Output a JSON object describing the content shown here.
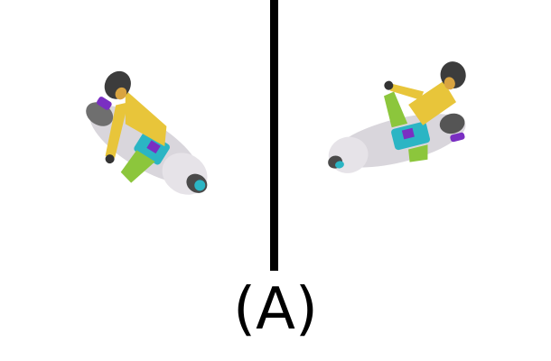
{
  "caption": "(A)",
  "panels": [
    {
      "label": "",
      "view": "motorcycle-rider-leaning-left",
      "icon": "motorcycle-rider-figure"
    },
    {
      "label": "",
      "view": "motorcycle-rider-leaning-right",
      "icon": "motorcycle-rider-figure"
    }
  ],
  "colors": {
    "rider_body": "#e8c53a",
    "rider_head": "#3c3c3c",
    "bike_body": "#d9d6dc",
    "accent_teal": "#2bb5c4",
    "accent_green": "#8cc63c",
    "accent_purple": "#7a2fc2",
    "divider": "#000000"
  }
}
